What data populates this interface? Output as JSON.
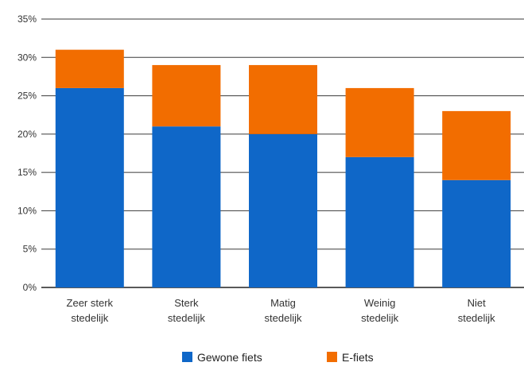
{
  "chart_data": {
    "type": "bar",
    "stacked": true,
    "title": "",
    "xlabel": "",
    "ylabel": "",
    "categories": [
      [
        "Zeer sterk",
        "stedelijk"
      ],
      [
        "Sterk",
        "stedelijk"
      ],
      [
        "Matig",
        "stedelijk"
      ],
      [
        "Weinig",
        "stedelijk"
      ],
      [
        "Niet",
        "stedelijk"
      ]
    ],
    "series": [
      {
        "name": "Gewone fiets",
        "color": "#0f67c8",
        "values": [
          26,
          21,
          20,
          17,
          14
        ]
      },
      {
        "name": "E-fiets",
        "color": "#f26d00",
        "values": [
          5,
          8,
          9,
          9,
          9
        ]
      }
    ],
    "ylim": [
      0,
      35
    ],
    "yticks": [
      0,
      5,
      10,
      15,
      20,
      25,
      30,
      35
    ],
    "ytick_labels": [
      "0%",
      "5%",
      "10%",
      "15%",
      "20%",
      "25%",
      "30%",
      "35%"
    ],
    "grid": true,
    "legend": "bottom-center"
  }
}
